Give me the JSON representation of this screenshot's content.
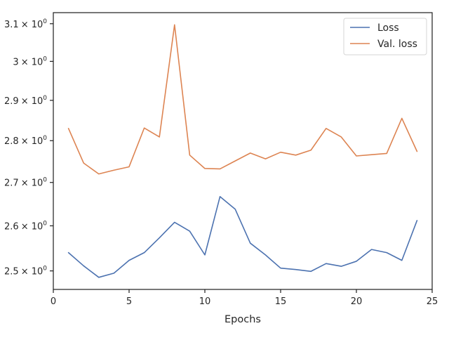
{
  "chart_data": {
    "type": "line",
    "title": "",
    "xlabel": "Epochs",
    "ylabel": "",
    "xlim": [
      0,
      25
    ],
    "ylim": [
      2.46,
      3.13
    ],
    "yscale": "log",
    "grid": false,
    "legend_position": "top-right",
    "x_ticks": [
      0,
      5,
      10,
      15,
      20,
      25
    ],
    "x_tick_labels": [
      "0",
      "5",
      "10",
      "15",
      "20",
      "25"
    ],
    "y_ticks": [
      2.5,
      2.6,
      2.7,
      2.8,
      2.9,
      3.0,
      3.1
    ],
    "y_tick_labels": [
      {
        "mantissa": "2.5",
        "base": "× 10",
        "exp": "0"
      },
      {
        "mantissa": "2.6",
        "base": "× 10",
        "exp": "0"
      },
      {
        "mantissa": "2.7",
        "base": "× 10",
        "exp": "0"
      },
      {
        "mantissa": "2.8",
        "base": "× 10",
        "exp": "0"
      },
      {
        "mantissa": "2.9",
        "base": "× 10",
        "exp": "0"
      },
      {
        "mantissa": "3",
        "base": "× 10",
        "exp": "0"
      },
      {
        "mantissa": "3.1",
        "base": "× 10",
        "exp": "0"
      }
    ],
    "x": [
      1,
      2,
      3,
      4,
      5,
      6,
      7,
      8,
      9,
      10,
      11,
      12,
      13,
      14,
      15,
      16,
      17,
      18,
      19,
      20,
      21,
      22,
      23,
      24
    ],
    "series": [
      {
        "name": "Loss",
        "color": "#4c72b0",
        "values": [
          2.54,
          2.511,
          2.486,
          2.495,
          2.523,
          2.54,
          2.573,
          2.608,
          2.588,
          2.535,
          2.667,
          2.638,
          2.561,
          2.535,
          2.506,
          2.503,
          2.499,
          2.516,
          2.51,
          2.521,
          2.547,
          2.54,
          2.523,
          2.612
        ]
      },
      {
        "name": "Val. loss",
        "color": "#dd8452",
        "values": [
          2.83,
          2.746,
          2.72,
          2.729,
          2.737,
          2.831,
          2.809,
          3.097,
          2.765,
          2.733,
          2.732,
          2.751,
          2.77,
          2.756,
          2.772,
          2.765,
          2.777,
          2.83,
          2.809,
          2.763,
          2.766,
          2.769,
          2.855,
          2.774
        ]
      }
    ]
  }
}
